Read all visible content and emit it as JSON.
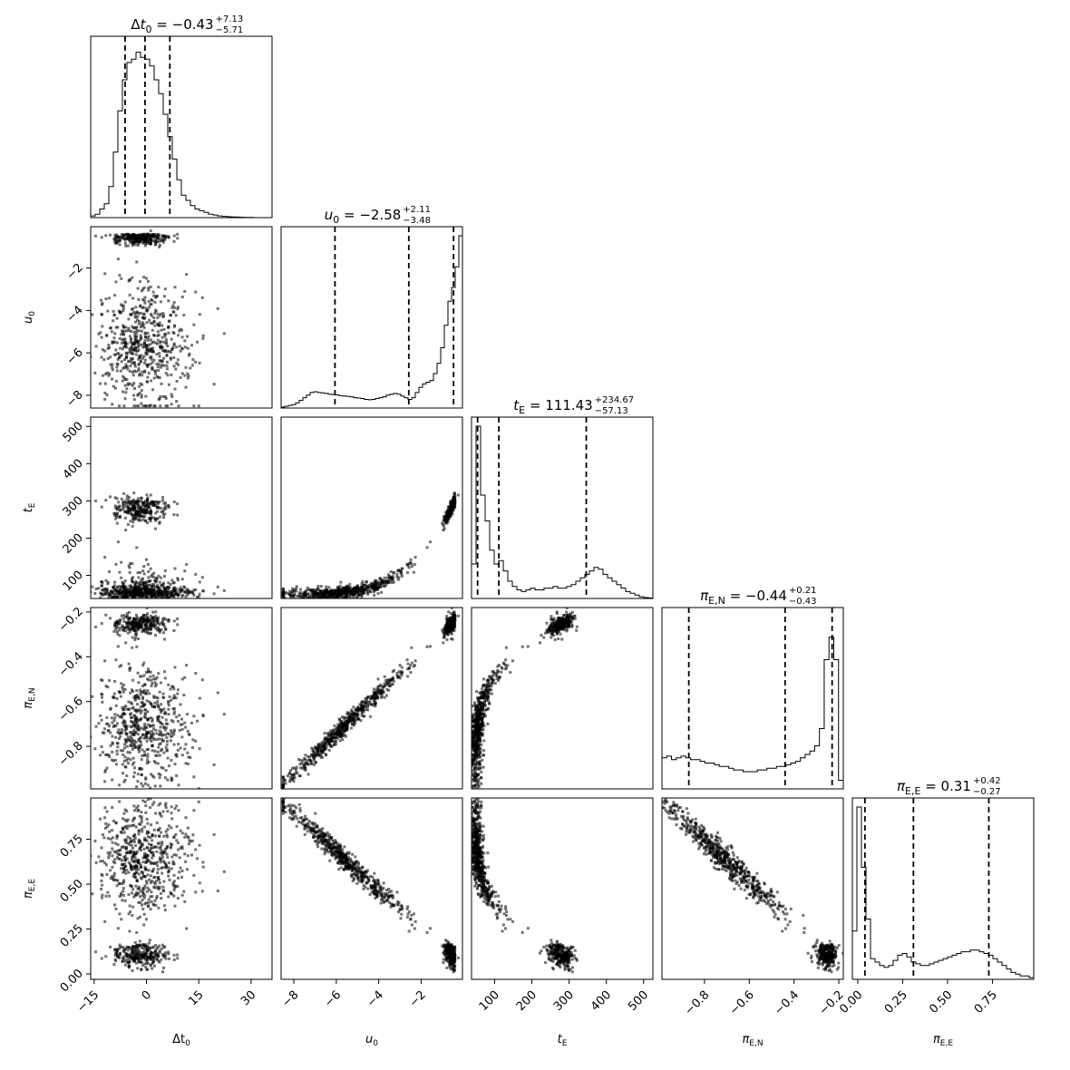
{
  "chart_data": {
    "type": "corner",
    "parameters": [
      {
        "label": "Δt₀",
        "title": {
          "name": "Δt₀",
          "median": "−0.43",
          "plus": "+7.13",
          "minus": "−5.71"
        },
        "range": [
          -16,
          36
        ],
        "ticks": [
          -15,
          0,
          15,
          30
        ],
        "tick_labels": [
          "−15",
          "0",
          "15",
          "30"
        ],
        "quantiles": [
          -6.14,
          -0.43,
          6.7
        ]
      },
      {
        "label": "u₀",
        "title": {
          "name": "u₀",
          "median": "−2.58",
          "plus": "+2.11",
          "minus": "−3.48"
        },
        "range": [
          -8.6,
          -0.05
        ],
        "ticks": [
          -8,
          -6,
          -4,
          -2
        ],
        "tick_labels": [
          "−8",
          "−6",
          "−4",
          "−2"
        ],
        "quantiles": [
          -6.06,
          -2.58,
          -0.47
        ]
      },
      {
        "label": "t_E",
        "title": {
          "name": "t_E",
          "median": "111.43",
          "plus": "+234.67",
          "minus": "−57.13"
        },
        "range": [
          38,
          525
        ],
        "ticks": [
          100,
          200,
          300,
          400,
          500
        ],
        "tick_labels": [
          "100",
          "200",
          "300",
          "400",
          "500"
        ],
        "quantiles": [
          54.3,
          111.43,
          346.1
        ]
      },
      {
        "label": "π_E,N",
        "title": {
          "name": "π_E,N",
          "median": "−0.44",
          "plus": "+0.21",
          "minus": "−0.43"
        },
        "range": [
          -0.99,
          -0.18
        ],
        "ticks": [
          -0.8,
          -0.6,
          -0.4,
          -0.2
        ],
        "tick_labels": [
          "−0.8",
          "−0.6",
          "−0.4",
          "−0.2"
        ],
        "quantiles": [
          -0.87,
          -0.44,
          -0.23
        ]
      },
      {
        "label": "π_E,E",
        "title": {
          "name": "π_E,E",
          "median": "0.31",
          "plus": "+0.42",
          "minus": "−0.27"
        },
        "range": [
          -0.03,
          0.98
        ],
        "ticks": [
          0.0,
          0.25,
          0.5,
          0.75
        ],
        "tick_labels": [
          "0.00",
          "0.25",
          "0.50",
          "0.75"
        ],
        "quantiles": [
          0.04,
          0.31,
          0.73
        ]
      }
    ],
    "histograms": [
      [
        0.01,
        0.02,
        0.05,
        0.08,
        0.18,
        0.38,
        0.62,
        0.8,
        0.9,
        0.92,
        0.96,
        0.93,
        0.92,
        0.88,
        0.8,
        0.72,
        0.6,
        0.47,
        0.34,
        0.22,
        0.13,
        0.1,
        0.07,
        0.05,
        0.04,
        0.03,
        0.02,
        0.015,
        0.01,
        0.007,
        0.005,
        0.004,
        0.003,
        0.002,
        0.001,
        0.001,
        0.0,
        0.0,
        0.0,
        0.0
      ],
      [
        0.005,
        0.01,
        0.015,
        0.02,
        0.03,
        0.045,
        0.06,
        0.075,
        0.09,
        0.095,
        0.09,
        0.088,
        0.085,
        0.08,
        0.078,
        0.076,
        0.072,
        0.07,
        0.068,
        0.065,
        0.06,
        0.058,
        0.055,
        0.05,
        0.048,
        0.05,
        0.055,
        0.06,
        0.065,
        0.075,
        0.08,
        0.085,
        0.08,
        0.07,
        0.06,
        0.05,
        0.06,
        0.09,
        0.12,
        0.14,
        0.15,
        0.16,
        0.2,
        0.26,
        0.35,
        0.48,
        0.62,
        0.7,
        0.82,
        1.0
      ],
      [
        0.2,
        1.0,
        0.6,
        0.45,
        0.28,
        0.2,
        0.22,
        0.16,
        0.1,
        0.07,
        0.05,
        0.04,
        0.05,
        0.06,
        0.05,
        0.05,
        0.06,
        0.06,
        0.07,
        0.06,
        0.06,
        0.07,
        0.08,
        0.1,
        0.12,
        0.14,
        0.16,
        0.18,
        0.17,
        0.14,
        0.12,
        0.1,
        0.08,
        0.06,
        0.04,
        0.03,
        0.02,
        0.01,
        0.005,
        0.003
      ],
      [
        0.18,
        0.19,
        0.17,
        0.18,
        0.19,
        0.18,
        0.17,
        0.17,
        0.16,
        0.15,
        0.15,
        0.14,
        0.13,
        0.13,
        0.12,
        0.11,
        0.11,
        0.1,
        0.1,
        0.1,
        0.11,
        0.11,
        0.12,
        0.12,
        0.13,
        0.13,
        0.14,
        0.15,
        0.16,
        0.18,
        0.2,
        0.22,
        0.25,
        0.35,
        0.75,
        0.88,
        0.75,
        0.05
      ],
      [
        0.28,
        1.0,
        0.65,
        0.35,
        0.12,
        0.1,
        0.08,
        0.07,
        0.08,
        0.11,
        0.14,
        0.15,
        0.13,
        0.1,
        0.09,
        0.08,
        0.08,
        0.09,
        0.1,
        0.11,
        0.12,
        0.13,
        0.14,
        0.15,
        0.16,
        0.16,
        0.17,
        0.17,
        0.16,
        0.15,
        0.14,
        0.12,
        0.1,
        0.08,
        0.06,
        0.04,
        0.03,
        0.02,
        0.02,
        0.01
      ]
    ],
    "grid": false,
    "legend": "none"
  }
}
